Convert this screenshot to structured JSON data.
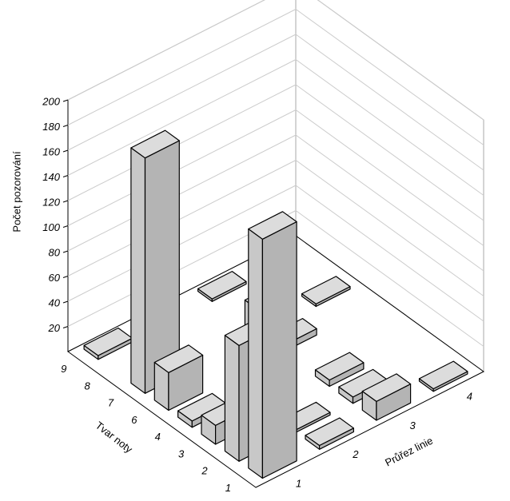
{
  "chart_data": {
    "type": "bar3d",
    "y_label": "Počet pozorování",
    "x_label": "Tvar noty",
    "z_label": "Průřez linie",
    "categories": [
      "1",
      "2",
      "3",
      "4",
      "6",
      "7",
      "8",
      "9"
    ],
    "series": [
      {
        "name": "1",
        "color": "#c8c8c8",
        "values": [
          190,
          92,
          15,
          5,
          30,
          187,
          null,
          3
        ]
      },
      {
        "name": "2",
        "color": "#c8c8c8",
        "values": [
          3,
          2,
          null,
          null,
          null,
          null,
          null,
          null
        ]
      },
      {
        "name": "3",
        "color": "#c8c8c8",
        "values": [
          15,
          5,
          5,
          null,
          5,
          20,
          null,
          2
        ]
      },
      {
        "name": "4",
        "color": "#c8c8c8",
        "values": [
          2,
          null,
          null,
          null,
          null,
          2,
          null,
          null
        ]
      }
    ],
    "ylim": [
      0,
      200
    ],
    "yticks": [
      20,
      40,
      60,
      80,
      100,
      120,
      140,
      160,
      180,
      200
    ],
    "grid": true
  }
}
